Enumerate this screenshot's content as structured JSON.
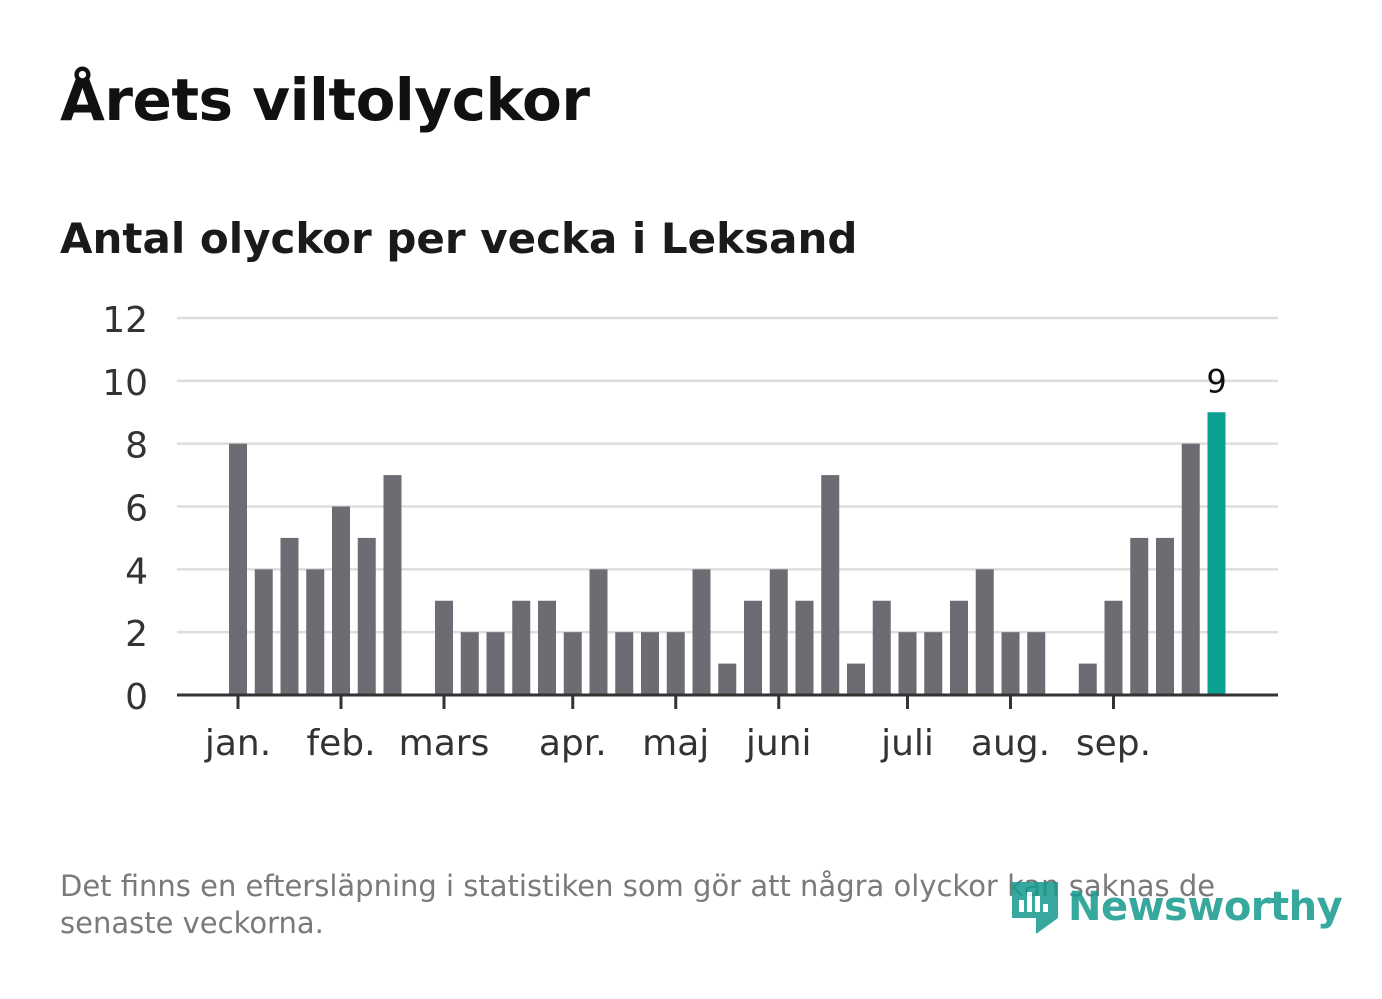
{
  "title": "Årets viltolyckor",
  "subtitle": "Antal olyckor per vecka i Leksand",
  "footnote": "Det finns en eftersläpning i statistiken som gör att några olyckor kan saknas de senaste veckorna.",
  "logo": {
    "text": "Newsworthy",
    "icon": "newsworthy-bars-icon"
  },
  "colors": {
    "bar": "#6d6c72",
    "highlight": "#0aa193",
    "grid": "#dddddd",
    "axis": "#333333",
    "text": "#333333"
  },
  "chart_data": {
    "type": "bar",
    "title": "Antal olyckor per vecka i Leksand",
    "xlabel": "",
    "ylabel": "",
    "ylim": [
      0,
      12
    ],
    "yticks": [
      "0",
      "2",
      "4",
      "6",
      "8",
      "10",
      "12"
    ],
    "grid": true,
    "weeks": [
      1,
      2,
      3,
      4,
      5,
      6,
      7,
      8,
      9,
      10,
      11,
      12,
      13,
      14,
      15,
      16,
      17,
      18,
      19,
      20,
      21,
      22,
      23,
      24,
      25,
      26,
      27,
      28,
      29,
      30,
      31,
      32,
      33,
      34,
      35,
      36,
      37,
      38,
      39
    ],
    "values": [
      8,
      4,
      5,
      4,
      6,
      5,
      7,
      0,
      3,
      2,
      2,
      3,
      3,
      2,
      4,
      2,
      2,
      2,
      4,
      1,
      3,
      4,
      3,
      7,
      1,
      3,
      2,
      2,
      3,
      4,
      2,
      2,
      0,
      1,
      3,
      5,
      5,
      8,
      9
    ],
    "highlight_index": 38,
    "highlight_label": "9",
    "month_labels": [
      {
        "label": "jan.",
        "week_index": 0
      },
      {
        "label": "feb.",
        "week_index": 4
      },
      {
        "label": "mars",
        "week_index": 8
      },
      {
        "label": "apr.",
        "week_index": 13
      },
      {
        "label": "maj",
        "week_index": 17
      },
      {
        "label": "juni",
        "week_index": 21
      },
      {
        "label": "juli",
        "week_index": 26
      },
      {
        "label": "aug.",
        "week_index": 30
      },
      {
        "label": "sep.",
        "week_index": 34
      }
    ]
  }
}
